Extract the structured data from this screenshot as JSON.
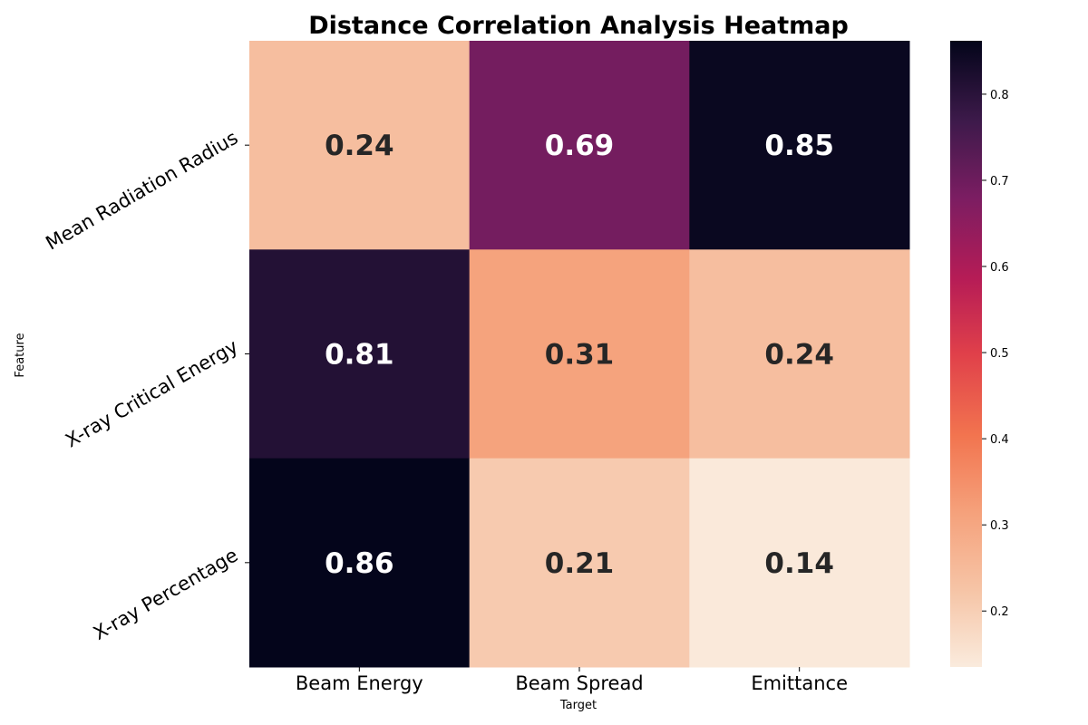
{
  "chart_data": {
    "type": "heatmap",
    "title": "Distance Correlation Analysis Heatmap",
    "xlabel": "Target",
    "ylabel": "Feature",
    "x_categories": [
      "Beam Energy",
      "Beam Spread",
      "Emittance"
    ],
    "y_categories": [
      "Mean Radiation Radius",
      "X-ray Critical Energy",
      "X-ray Percentage"
    ],
    "values": [
      [
        0.24,
        0.69,
        0.85
      ],
      [
        0.81,
        0.31,
        0.24
      ],
      [
        0.86,
        0.21,
        0.14
      ]
    ],
    "cell_labels": [
      [
        "0.24",
        "0.69",
        "0.85"
      ],
      [
        "0.81",
        "0.31",
        "0.24"
      ],
      [
        "0.86",
        "0.21",
        "0.14"
      ]
    ],
    "colormap": "rocket_r",
    "colorbar": {
      "range": [
        0.135,
        0.862
      ],
      "ticks": [
        0.2,
        0.3,
        0.4,
        0.5,
        0.6,
        0.7,
        0.8
      ],
      "tick_labels": [
        "0.2",
        "0.3",
        "0.4",
        "0.5",
        "0.6",
        "0.7",
        "0.8"
      ]
    },
    "colors": {
      "low": "#faebdd",
      "high": "#03051a",
      "dark_text": "#262626",
      "light_text": "#ffffff"
    }
  }
}
